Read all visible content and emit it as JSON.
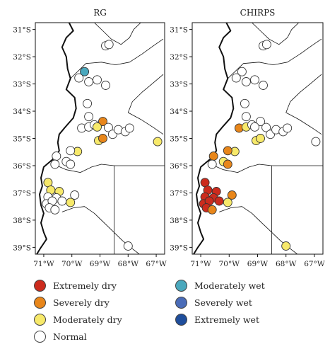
{
  "panels": [
    {
      "title": "RG",
      "stations": [
        {
          "lon": -69.55,
          "lat": -32.55,
          "cls": "moderately_wet"
        },
        {
          "lon": -69.75,
          "lat": -32.78,
          "cls": "normal"
        },
        {
          "lon": -69.4,
          "lat": -32.92,
          "cls": "normal"
        },
        {
          "lon": -69.1,
          "lat": -32.85,
          "cls": "normal"
        },
        {
          "lon": -68.8,
          "lat": -33.05,
          "cls": "normal"
        },
        {
          "lon": -68.8,
          "lat": -31.6,
          "cls": "normal"
        },
        {
          "lon": -68.68,
          "lat": -31.55,
          "cls": "normal"
        },
        {
          "lon": -69.45,
          "lat": -33.72,
          "cls": "normal"
        },
        {
          "lon": -69.4,
          "lat": -34.2,
          "cls": "normal"
        },
        {
          "lon": -69.65,
          "lat": -34.62,
          "cls": "normal"
        },
        {
          "lon": -69.4,
          "lat": -34.58,
          "cls": "normal"
        },
        {
          "lon": -69.2,
          "lat": -34.5,
          "cls": "normal"
        },
        {
          "lon": -68.9,
          "lat": -34.38,
          "cls": "severely_dry"
        },
        {
          "lon": -69.1,
          "lat": -34.58,
          "cls": "moderately_dry"
        },
        {
          "lon": -68.7,
          "lat": -34.6,
          "cls": "normal"
        },
        {
          "lon": -68.55,
          "lat": -34.85,
          "cls": "normal"
        },
        {
          "lon": -68.35,
          "lat": -34.68,
          "cls": "normal"
        },
        {
          "lon": -68.1,
          "lat": -34.75,
          "cls": "normal"
        },
        {
          "lon": -67.95,
          "lat": -34.62,
          "cls": "normal"
        },
        {
          "lon": -69.05,
          "lat": -35.08,
          "cls": "moderately_dry"
        },
        {
          "lon": -68.9,
          "lat": -35.0,
          "cls": "severely_dry"
        },
        {
          "lon": -66.95,
          "lat": -35.12,
          "cls": "moderately_dry"
        },
        {
          "lon": -69.8,
          "lat": -35.48,
          "cls": "moderately_dry"
        },
        {
          "lon": -70.05,
          "lat": -35.45,
          "cls": "normal"
        },
        {
          "lon": -70.55,
          "lat": -35.65,
          "cls": "normal"
        },
        {
          "lon": -70.2,
          "lat": -35.85,
          "cls": "normal"
        },
        {
          "lon": -70.05,
          "lat": -35.95,
          "cls": "normal"
        },
        {
          "lon": -70.6,
          "lat": -35.95,
          "cls": "normal"
        },
        {
          "lon": -70.85,
          "lat": -36.62,
          "cls": "moderately_dry"
        },
        {
          "lon": -70.75,
          "lat": -36.9,
          "cls": "moderately_dry"
        },
        {
          "lon": -70.45,
          "lat": -36.95,
          "cls": "moderately_dry"
        },
        {
          "lon": -69.9,
          "lat": -37.08,
          "cls": "normal"
        },
        {
          "lon": -70.85,
          "lat": -37.15,
          "cls": "normal"
        },
        {
          "lon": -70.55,
          "lat": -37.18,
          "cls": "normal"
        },
        {
          "lon": -70.9,
          "lat": -37.4,
          "cls": "normal"
        },
        {
          "lon": -70.7,
          "lat": -37.3,
          "cls": "normal"
        },
        {
          "lon": -70.35,
          "lat": -37.3,
          "cls": "normal"
        },
        {
          "lon": -70.05,
          "lat": -37.35,
          "cls": "moderately_dry"
        },
        {
          "lon": -70.8,
          "lat": -37.55,
          "cls": "normal"
        },
        {
          "lon": -70.6,
          "lat": -37.62,
          "cls": "normal"
        },
        {
          "lon": -68.0,
          "lat": -38.95,
          "cls": "normal"
        }
      ]
    },
    {
      "title": "CHIRPS",
      "stations": [
        {
          "lon": -69.55,
          "lat": -32.55,
          "cls": "normal"
        },
        {
          "lon": -69.75,
          "lat": -32.78,
          "cls": "normal"
        },
        {
          "lon": -69.4,
          "lat": -32.92,
          "cls": "normal"
        },
        {
          "lon": -69.1,
          "lat": -32.85,
          "cls": "normal"
        },
        {
          "lon": -68.8,
          "lat": -33.05,
          "cls": "normal"
        },
        {
          "lon": -68.8,
          "lat": -31.6,
          "cls": "normal"
        },
        {
          "lon": -68.68,
          "lat": -31.55,
          "cls": "normal"
        },
        {
          "lon": -69.45,
          "lat": -33.72,
          "cls": "normal"
        },
        {
          "lon": -69.4,
          "lat": -34.2,
          "cls": "normal"
        },
        {
          "lon": -69.65,
          "lat": -34.62,
          "cls": "severely_dry"
        },
        {
          "lon": -69.4,
          "lat": -34.58,
          "cls": "moderately_dry"
        },
        {
          "lon": -69.2,
          "lat": -34.5,
          "cls": "normal"
        },
        {
          "lon": -68.9,
          "lat": -34.38,
          "cls": "normal"
        },
        {
          "lon": -69.1,
          "lat": -34.58,
          "cls": "normal"
        },
        {
          "lon": -68.7,
          "lat": -34.6,
          "cls": "normal"
        },
        {
          "lon": -68.55,
          "lat": -34.85,
          "cls": "normal"
        },
        {
          "lon": -68.35,
          "lat": -34.68,
          "cls": "normal"
        },
        {
          "lon": -68.1,
          "lat": -34.75,
          "cls": "normal"
        },
        {
          "lon": -67.95,
          "lat": -34.62,
          "cls": "normal"
        },
        {
          "lon": -69.05,
          "lat": -35.08,
          "cls": "moderately_dry"
        },
        {
          "lon": -68.9,
          "lat": -35.0,
          "cls": "moderately_dry"
        },
        {
          "lon": -66.95,
          "lat": -35.12,
          "cls": "normal"
        },
        {
          "lon": -69.8,
          "lat": -35.48,
          "cls": "moderately_dry"
        },
        {
          "lon": -70.05,
          "lat": -35.45,
          "cls": "severely_dry"
        },
        {
          "lon": -70.55,
          "lat": -35.65,
          "cls": "severely_dry"
        },
        {
          "lon": -70.2,
          "lat": -35.85,
          "cls": "moderately_dry"
        },
        {
          "lon": -70.05,
          "lat": -35.95,
          "cls": "severely_dry"
        },
        {
          "lon": -70.6,
          "lat": -35.95,
          "cls": "normal"
        },
        {
          "lon": -70.85,
          "lat": -36.62,
          "cls": "extremely_dry"
        },
        {
          "lon": -70.75,
          "lat": -36.9,
          "cls": "extremely_dry"
        },
        {
          "lon": -70.45,
          "lat": -36.95,
          "cls": "extremely_dry"
        },
        {
          "lon": -69.9,
          "lat": -37.08,
          "cls": "severely_dry"
        },
        {
          "lon": -70.85,
          "lat": -37.15,
          "cls": "extremely_dry"
        },
        {
          "lon": -70.55,
          "lat": -37.18,
          "cls": "extremely_dry"
        },
        {
          "lon": -70.9,
          "lat": -37.4,
          "cls": "extremely_dry"
        },
        {
          "lon": -70.7,
          "lat": -37.3,
          "cls": "extremely_dry"
        },
        {
          "lon": -70.35,
          "lat": -37.3,
          "cls": "extremely_dry"
        },
        {
          "lon": -70.05,
          "lat": -37.35,
          "cls": "moderately_dry"
        },
        {
          "lon": -70.8,
          "lat": -37.55,
          "cls": "extremely_dry"
        },
        {
          "lon": -70.6,
          "lat": -37.62,
          "cls": "severely_dry"
        },
        {
          "lon": -68.0,
          "lat": -38.95,
          "cls": "moderately_dry"
        }
      ]
    }
  ],
  "lat_ticks": [
    {
      "lat": -31,
      "label": "31°S"
    },
    {
      "lat": -32,
      "label": "32°S"
    },
    {
      "lat": -33,
      "label": "33°S"
    },
    {
      "lat": -34,
      "label": "34°S"
    },
    {
      "lat": -35,
      "label": "35°S"
    },
    {
      "lat": -36,
      "label": "36°S"
    },
    {
      "lat": -37,
      "label": "37°S"
    },
    {
      "lat": -38,
      "label": "38°S"
    },
    {
      "lat": -39,
      "label": "39°S"
    }
  ],
  "lon_ticks": [
    {
      "lon": -71,
      "label": "71°W"
    },
    {
      "lon": -70,
      "label": "70°W"
    },
    {
      "lon": -69,
      "label": "69°W"
    },
    {
      "lon": -68,
      "label": "68°W"
    },
    {
      "lon": -67,
      "label": "67°W"
    }
  ],
  "categories": {
    "extremely_dry": {
      "label": "Extremely dry",
      "color": "#cc2b1d"
    },
    "severely_dry": {
      "label": "Severely dry",
      "color": "#e8861a"
    },
    "moderately_dry": {
      "label": "Moderately dry",
      "color": "#f7e96a"
    },
    "normal": {
      "label": "Normal",
      "color": "#ffffff"
    },
    "moderately_wet": {
      "label": "Moderately wet",
      "color": "#4aa8bd"
    },
    "severely_wet": {
      "label": "Severely wet",
      "color": "#4a6cb8"
    },
    "extremely_wet": {
      "label": "Extremely wet",
      "color": "#1f4e9c"
    }
  },
  "legend": {
    "left_column": [
      "extremely_dry",
      "severely_dry",
      "moderately_dry",
      "normal"
    ],
    "right_column": [
      "moderately_wet",
      "severely_wet",
      "extremely_wet"
    ]
  }
}
